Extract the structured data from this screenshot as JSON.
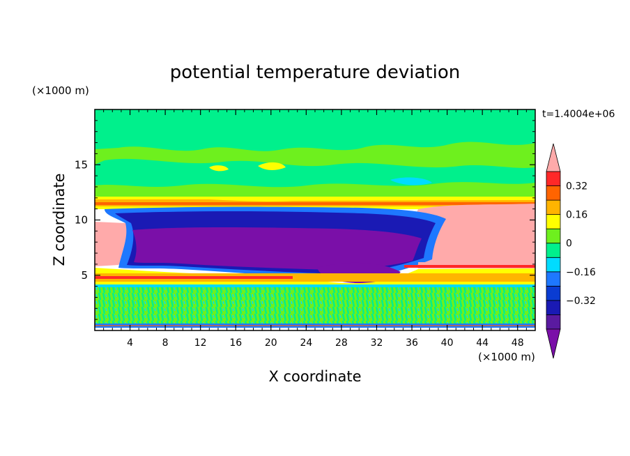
{
  "chart_data": {
    "type": "heatmap",
    "title": "potential temperature deviation",
    "xlabel": "X coordinate",
    "ylabel": "Z coordinate",
    "x_unit": "(×1000 m)",
    "y_unit": "(×1000 m)",
    "time_label": "t=1.4004e+06",
    "xlim": [
      0,
      50
    ],
    "ylim": [
      0,
      20
    ],
    "x_ticks": [
      4,
      8,
      12,
      16,
      20,
      24,
      28,
      32,
      36,
      40,
      44,
      48
    ],
    "y_ticks": [
      5,
      10,
      15
    ],
    "colorbar": {
      "levels": [
        -0.48,
        -0.4,
        -0.32,
        -0.24,
        -0.16,
        -0.08,
        0,
        0.08,
        0.16,
        0.24,
        0.32,
        0.4
      ],
      "tick_values": [
        0.32,
        0.16,
        0,
        -0.16,
        -0.32
      ],
      "tick_labels": [
        "0.32",
        "0.16",
        "0",
        "−0.16",
        "−0.32"
      ],
      "colors_low_to_high": [
        "#7a0fa8",
        "#5a1aa0",
        "#1a1ab4",
        "#0a3cd2",
        "#1e78ff",
        "#00dcff",
        "#00f08c",
        "#6ef01e",
        "#ffff00",
        "#ffb400",
        "#ff6400",
        "#ff2828",
        "#ffaaaa"
      ],
      "extend": "both"
    },
    "regions": [
      {
        "name": "lower-layer",
        "x": [
          0,
          50
        ],
        "z": [
          0.3,
          4.0
        ],
        "level": "0 to 0.08"
      },
      {
        "name": "inversion-band",
        "x": [
          0,
          50
        ],
        "z": [
          4.0,
          5.8
        ],
        "level": "0.16 to >0.4"
      },
      {
        "name": "cold-core",
        "x": [
          3,
          38
        ],
        "z": [
          5.5,
          9.8
        ],
        "level": "< -0.4"
      },
      {
        "name": "warm-left",
        "x": [
          0,
          4
        ],
        "z": [
          5.8,
          9.8
        ],
        "level": "> 0.4"
      },
      {
        "name": "warm-right",
        "x": [
          38,
          50
        ],
        "z": [
          5.8,
          10.8
        ],
        "level": "> 0.4"
      },
      {
        "name": "tropopause-band",
        "x": [
          0,
          50
        ],
        "z": [
          10.5,
          11.8
        ],
        "level": "0.08 to 0.32"
      },
      {
        "name": "upper-layer",
        "x": [
          0,
          50
        ],
        "z": [
          11.8,
          20
        ],
        "level": "-0.08 to 0.16"
      }
    ]
  }
}
